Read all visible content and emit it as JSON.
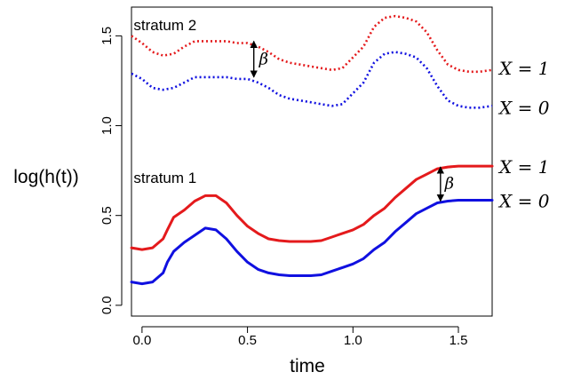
{
  "chart_data": {
    "type": "line",
    "xlabel": "time",
    "ylabel": "log(h(t))",
    "xlim": [
      -0.05,
      1.66
    ],
    "ylim": [
      -0.06,
      1.66
    ],
    "xticks": [
      0.0,
      0.5,
      1.0,
      1.5
    ],
    "xtick_labels": [
      "0.0",
      "0.5",
      "1.0",
      "1.5"
    ],
    "yticks": [
      0.0,
      0.5,
      1.0,
      1.5
    ],
    "ytick_labels": [
      "0.0",
      "0.5",
      "1.0",
      "1.5"
    ],
    "grid": false,
    "legend": "none",
    "colors": {
      "red": "#e41a1c",
      "blue": "#1010e0",
      "axis": "#000000"
    },
    "series": [
      {
        "color": "red",
        "style": "solid",
        "x": [
          -0.05,
          0.0,
          0.05,
          0.1,
          0.12,
          0.15,
          0.2,
          0.25,
          0.3,
          0.35,
          0.4,
          0.45,
          0.5,
          0.55,
          0.6,
          0.65,
          0.7,
          0.75,
          0.8,
          0.85,
          0.9,
          0.95,
          1.0,
          1.05,
          1.1,
          1.15,
          1.2,
          1.25,
          1.3,
          1.35,
          1.4,
          1.45,
          1.5,
          1.55,
          1.6,
          1.66
        ],
        "y": [
          0.32,
          0.31,
          0.32,
          0.37,
          0.42,
          0.49,
          0.53,
          0.58,
          0.61,
          0.61,
          0.57,
          0.5,
          0.44,
          0.4,
          0.37,
          0.36,
          0.355,
          0.355,
          0.355,
          0.36,
          0.38,
          0.4,
          0.42,
          0.45,
          0.5,
          0.54,
          0.6,
          0.65,
          0.7,
          0.73,
          0.76,
          0.77,
          0.775,
          0.775,
          0.775,
          0.775
        ]
      },
      {
        "color": "blue",
        "style": "solid",
        "x": [
          -0.05,
          0.0,
          0.05,
          0.1,
          0.12,
          0.15,
          0.2,
          0.25,
          0.3,
          0.35,
          0.4,
          0.45,
          0.5,
          0.55,
          0.6,
          0.65,
          0.7,
          0.75,
          0.8,
          0.85,
          0.9,
          0.95,
          1.0,
          1.05,
          1.1,
          1.15,
          1.2,
          1.25,
          1.3,
          1.35,
          1.4,
          1.45,
          1.5,
          1.55,
          1.6,
          1.66
        ],
        "y": [
          0.13,
          0.12,
          0.13,
          0.18,
          0.24,
          0.3,
          0.35,
          0.39,
          0.43,
          0.42,
          0.37,
          0.3,
          0.24,
          0.2,
          0.18,
          0.17,
          0.165,
          0.165,
          0.165,
          0.17,
          0.19,
          0.21,
          0.23,
          0.26,
          0.31,
          0.35,
          0.41,
          0.46,
          0.51,
          0.54,
          0.57,
          0.58,
          0.585,
          0.585,
          0.585,
          0.585
        ]
      },
      {
        "color": "red",
        "style": "dotted",
        "x": [
          -0.05,
          0.0,
          0.05,
          0.1,
          0.15,
          0.2,
          0.25,
          0.3,
          0.35,
          0.4,
          0.45,
          0.5,
          0.55,
          0.6,
          0.65,
          0.7,
          0.75,
          0.8,
          0.85,
          0.9,
          0.95,
          1.0,
          1.05,
          1.1,
          1.15,
          1.2,
          1.25,
          1.3,
          1.35,
          1.4,
          1.45,
          1.5,
          1.55,
          1.6,
          1.66
        ],
        "y": [
          1.5,
          1.46,
          1.41,
          1.39,
          1.4,
          1.44,
          1.47,
          1.47,
          1.47,
          1.47,
          1.46,
          1.46,
          1.44,
          1.41,
          1.37,
          1.35,
          1.34,
          1.33,
          1.32,
          1.31,
          1.32,
          1.38,
          1.44,
          1.55,
          1.6,
          1.61,
          1.6,
          1.58,
          1.52,
          1.42,
          1.34,
          1.31,
          1.3,
          1.3,
          1.31
        ]
      },
      {
        "color": "blue",
        "style": "dotted",
        "x": [
          -0.05,
          0.0,
          0.05,
          0.1,
          0.15,
          0.2,
          0.25,
          0.3,
          0.35,
          0.4,
          0.45,
          0.5,
          0.55,
          0.6,
          0.65,
          0.7,
          0.75,
          0.8,
          0.85,
          0.9,
          0.95,
          1.0,
          1.05,
          1.1,
          1.15,
          1.2,
          1.25,
          1.3,
          1.35,
          1.4,
          1.45,
          1.5,
          1.55,
          1.6,
          1.66
        ],
        "y": [
          1.29,
          1.26,
          1.21,
          1.2,
          1.21,
          1.24,
          1.27,
          1.27,
          1.27,
          1.27,
          1.26,
          1.26,
          1.24,
          1.21,
          1.17,
          1.15,
          1.14,
          1.13,
          1.12,
          1.11,
          1.12,
          1.18,
          1.24,
          1.35,
          1.4,
          1.41,
          1.4,
          1.38,
          1.32,
          1.22,
          1.14,
          1.11,
          1.1,
          1.1,
          1.11
        ]
      }
    ],
    "annotations": [
      {
        "text": "stratum 2",
        "x": -0.04,
        "y": 1.56
      },
      {
        "text": "stratum 1",
        "x": -0.04,
        "y": 0.71
      },
      {
        "text": "β",
        "x": 0.555,
        "y": 1.37,
        "arrow_x": 0.53,
        "arrow_y": [
          1.27,
          1.47
        ]
      },
      {
        "text": "β",
        "x": 1.435,
        "y": 0.68,
        "arrow_x": 1.415,
        "arrow_y": [
          0.58,
          0.77
        ]
      }
    ],
    "right_labels": [
      {
        "text": "X = 1",
        "y": 1.32
      },
      {
        "text": "X = 0",
        "y": 1.1
      },
      {
        "text": "X = 1",
        "y": 0.77
      },
      {
        "text": "X = 0",
        "y": 0.58
      }
    ]
  }
}
